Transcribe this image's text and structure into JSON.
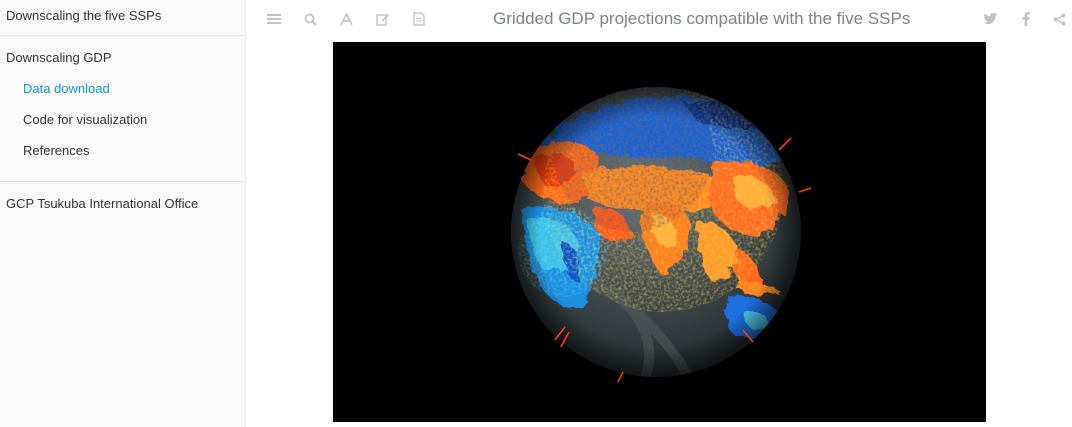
{
  "sidebar": {
    "header": "Downscaling the five SSPs",
    "items": [
      {
        "label": "Downscaling GDP"
      },
      {
        "label": "Data download"
      },
      {
        "label": "Code for visualization"
      },
      {
        "label": "References"
      }
    ],
    "footer_item": "GCP Tsukuba International Office"
  },
  "toolbar": {
    "left_icons": [
      "menu-icon",
      "search-icon",
      "font-icon",
      "edit-icon",
      "pdf-icon"
    ],
    "right_icons": [
      "twitter-icon",
      "facebook-icon",
      "share-icon"
    ]
  },
  "page": {
    "title": "Gridded GDP projections compatible with the five SSPs"
  },
  "colors": {
    "accent": "#0f97c8",
    "icon": "#c2c2c2",
    "title": "#7b8389",
    "globe_background": "#000000"
  }
}
